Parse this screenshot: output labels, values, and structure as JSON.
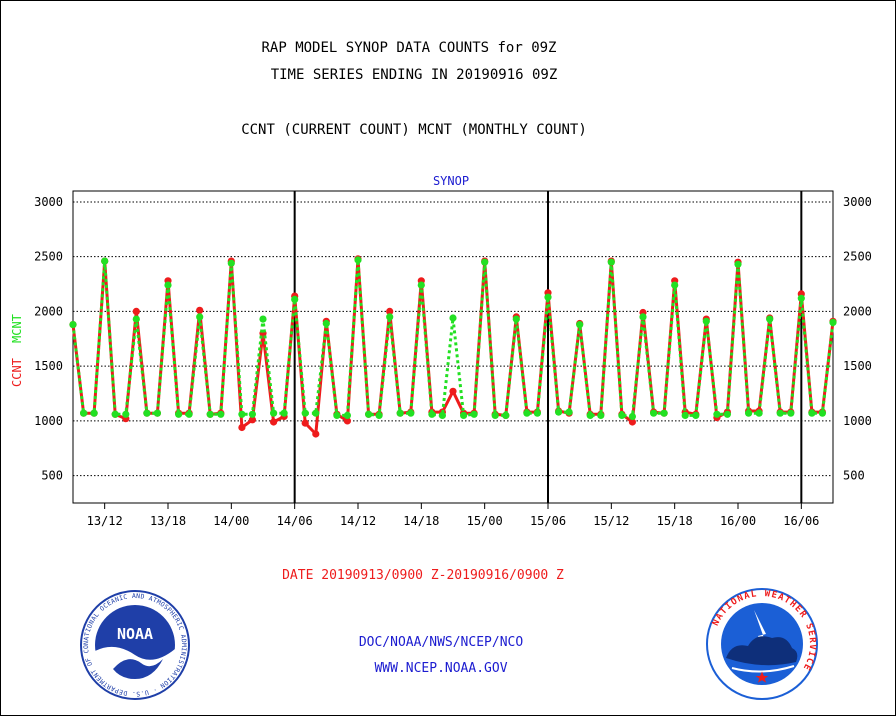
{
  "header": {
    "title_line1": "RAP MODEL SYNOP DATA COUNTS for 09Z",
    "title_line2": "TIME SERIES ENDING IN 20190916 09Z",
    "subtitle": "CCNT (CURRENT COUNT) MCNT (MONTHLY COUNT)"
  },
  "footer": {
    "date_range": "DATE 20190913/0900 Z-20190916/0900 Z",
    "org_path": "DOC/NOAA/NWS/NCEP/NCO",
    "website": "WWW.NCEP.NOAA.GOV"
  },
  "logos": {
    "noaa_text": "NOAA",
    "noaa_ring": "NATIONAL OCEANIC AND ATMOSPHERIC ADMINISTRATION · U.S. DEPARTMENT OF COMMERCE",
    "nws_ring": "NATIONAL WEATHER SERVICE"
  },
  "colors": {
    "ccnt": "#ee1c1c",
    "mcnt": "#22e022",
    "panel_label": "#1c1cd0",
    "footer_text": "#1c1cd0",
    "date_text": "#ee1c1c",
    "noaa_blue": "#1f3fa8",
    "nws_blue": "#1b5fd6"
  },
  "chart_data": {
    "type": "line",
    "panel_label": "SYNOP",
    "ylabel_ccnt": "CCNT",
    "ylabel_mcnt": "MCNT",
    "x_unit": "hours after 2019-09-13 09Z",
    "x_range": [
      0,
      72
    ],
    "ylim": [
      250,
      3100
    ],
    "yticks": [
      500,
      1000,
      1500,
      2000,
      2500,
      3000
    ],
    "xticks": [
      {
        "label": "13/12",
        "hour": 3
      },
      {
        "label": "13/18",
        "hour": 9
      },
      {
        "label": "14/00",
        "hour": 15
      },
      {
        "label": "14/06",
        "hour": 21
      },
      {
        "label": "14/12",
        "hour": 27
      },
      {
        "label": "14/18",
        "hour": 33
      },
      {
        "label": "15/00",
        "hour": 39
      },
      {
        "label": "15/06",
        "hour": 45
      },
      {
        "label": "15/12",
        "hour": 51
      },
      {
        "label": "15/18",
        "hour": 57
      },
      {
        "label": "16/00",
        "hour": 63
      },
      {
        "label": "16/06",
        "hour": 69
      }
    ],
    "day_dividers": [
      21,
      45,
      69
    ],
    "grid": true,
    "series": [
      {
        "name": "CCNT",
        "values": [
          1880,
          1070,
          1070,
          2460,
          1060,
          1020,
          2000,
          1070,
          1070,
          2280,
          1070,
          1070,
          2010,
          1060,
          1070,
          2460,
          940,
          1010,
          1800,
          990,
          1040,
          2140,
          980,
          880,
          1910,
          1060,
          1000,
          2480,
          1060,
          1060,
          2000,
          1070,
          1080,
          2280,
          1080,
          1080,
          1270,
          1070,
          1070,
          2460,
          1060,
          1050,
          1950,
          1080,
          1080,
          2170,
          1090,
          1070,
          1890,
          1060,
          1060,
          2460,
          1060,
          990,
          1990,
          1080,
          1070,
          2280,
          1080,
          1060,
          1930,
          1030,
          1080,
          2450,
          1090,
          1090,
          1940,
          1080,
          1080,
          2160,
          1080,
          1080,
          1910
        ]
      },
      {
        "name": "MCNT",
        "values": [
          1880,
          1070,
          1070,
          2460,
          1060,
          1060,
          1930,
          1070,
          1070,
          2240,
          1060,
          1060,
          1950,
          1060,
          1060,
          2440,
          1060,
          1060,
          1930,
          1070,
          1070,
          2110,
          1070,
          1070,
          1890,
          1050,
          1050,
          2470,
          1060,
          1050,
          1950,
          1070,
          1070,
          2240,
          1060,
          1050,
          1940,
          1050,
          1060,
          2450,
          1050,
          1050,
          1930,
          1070,
          1070,
          2130,
          1080,
          1080,
          1880,
          1050,
          1050,
          2450,
          1050,
          1040,
          1950,
          1070,
          1070,
          2240,
          1050,
          1050,
          1910,
          1060,
          1060,
          2430,
          1070,
          1070,
          1930,
          1070,
          1070,
          2120,
          1070,
          1070,
          1900
        ]
      }
    ]
  }
}
